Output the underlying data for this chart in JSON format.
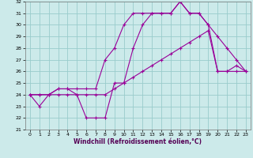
{
  "xlabel": "Windchill (Refroidissement éolien,°C)",
  "background_color": "#cceaea",
  "grid_color": "#99cccc",
  "line_color": "#990099",
  "xlim": [
    0,
    23
  ],
  "ylim": [
    21,
    32
  ],
  "xticks": [
    0,
    1,
    2,
    3,
    4,
    5,
    6,
    7,
    8,
    9,
    10,
    11,
    12,
    13,
    14,
    15,
    16,
    17,
    18,
    19,
    20,
    21,
    22,
    23
  ],
  "yticks": [
    21,
    22,
    23,
    24,
    25,
    26,
    27,
    28,
    29,
    30,
    31,
    32
  ],
  "series1": [
    24,
    23,
    24,
    24.5,
    24.5,
    24,
    22,
    22,
    22,
    25,
    25,
    28,
    30,
    31,
    31,
    31,
    32,
    31,
    31,
    30,
    29,
    28,
    27,
    26
  ],
  "series2": [
    24,
    24,
    24,
    24.5,
    24.5,
    24.5,
    24.5,
    24.5,
    27,
    28,
    30,
    31,
    31,
    31,
    31,
    31,
    32,
    31,
    31,
    30,
    26,
    26,
    26.5,
    26
  ],
  "series3": [
    24,
    24,
    24,
    24,
    24,
    24,
    24,
    24,
    24,
    24.5,
    25,
    25.5,
    26,
    26.5,
    27,
    27.5,
    28,
    28.5,
    29,
    29.5,
    26,
    26,
    26,
    26
  ]
}
